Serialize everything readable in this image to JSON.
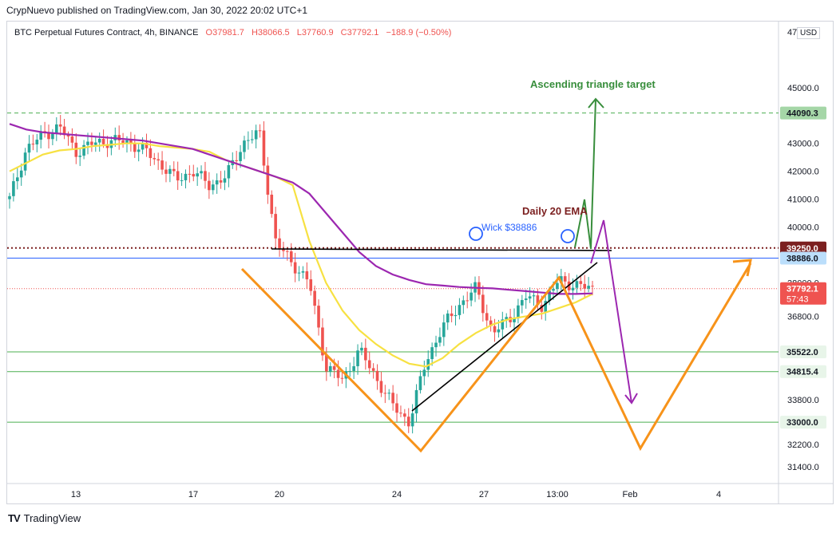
{
  "publisher_line": "CrypNuevo published on TradingView.com, Jan 30, 2022 20:02 UTC+1",
  "legend": {
    "symbol": "BTC Perpetual Futures Contract, 4h, BINANCE",
    "open": "O37981.7",
    "high": "H38066.5",
    "low": "L37760.9",
    "close": "C37792.1",
    "change": "−188.9 (−0.50%)"
  },
  "currency": "USD",
  "brand": "TradingView",
  "colors": {
    "up": "#26a69a",
    "down": "#ef5350",
    "ema_fast": "#f7e142",
    "ema_slow": "#9c27b0",
    "support": "#4caf50",
    "resistance": "#7b1f1f",
    "blue_level": "#2962ff",
    "orange_path": "#f7931a",
    "target": "#388e3c",
    "purple_path": "#9c27b0"
  },
  "chart_data": {
    "type": "candlestick",
    "timeframe": "4h",
    "x_ticks": [
      "13",
      "17",
      "20",
      "24",
      "27",
      "13:00",
      "Feb",
      "4"
    ],
    "y_ticks": [
      47000,
      45000,
      43000,
      42000,
      41000,
      40000,
      38000,
      36800,
      33800,
      32200,
      31400
    ],
    "ylim": [
      30800,
      47400
    ],
    "price_labels": [
      {
        "value": 44090.3,
        "text": "44090.3",
        "style": "dark"
      },
      {
        "value": 39250.0,
        "text": "39250.0",
        "style": "dark"
      },
      {
        "value": 38886.0,
        "text": "38886.0",
        "style": "light"
      },
      {
        "value": 37792.1,
        "text": "37792.1",
        "extra": "57:43",
        "style": "red"
      },
      {
        "value": 35522.0,
        "text": "35522.0",
        "style": "light"
      },
      {
        "value": 34815.4,
        "text": "34815.4",
        "style": "light"
      },
      {
        "value": 33000.0,
        "text": "33000.0",
        "style": "light"
      }
    ],
    "annotations": [
      {
        "text": "Ascending triangle target",
        "color": "#388e3c"
      },
      {
        "text": "Daily 20 EMA",
        "color": "#7b1f1f"
      },
      {
        "text": "Wick $38886",
        "color": "#2962ff"
      }
    ],
    "levels": {
      "target": 44090.3,
      "resistance_dotted": 39250.0,
      "wick": 38886.0,
      "current": 37792.1,
      "support_1": 35522.0,
      "support_2": 34815.4,
      "support_3": 33000.0
    },
    "grid": false,
    "series": [
      {
        "kind": "ema",
        "color": "#f7e142",
        "values": [
          42000,
          42300,
          42600,
          42750,
          42800,
          42900,
          42950,
          43000,
          43000,
          42900,
          42850,
          42800,
          42700,
          42400,
          42200,
          42000,
          41800,
          41500,
          39500,
          38000,
          37000,
          36300,
          35800,
          35400,
          35100,
          35000,
          35300,
          35800,
          36200,
          36500,
          36700,
          36800,
          36900,
          37100,
          37300,
          37600
        ]
      },
      {
        "kind": "ema",
        "color": "#9c27b0",
        "values": [
          43700,
          43500,
          43400,
          43350,
          43300,
          43250,
          43200,
          43150,
          43100,
          43000,
          42900,
          42800,
          42600,
          42400,
          42200,
          42000,
          41800,
          41600,
          41200,
          40500,
          39800,
          39100,
          38600,
          38300,
          38100,
          37950,
          37900,
          37850,
          37820,
          37800,
          37750,
          37700,
          37650,
          37600,
          37600,
          37620
        ]
      }
    ]
  }
}
